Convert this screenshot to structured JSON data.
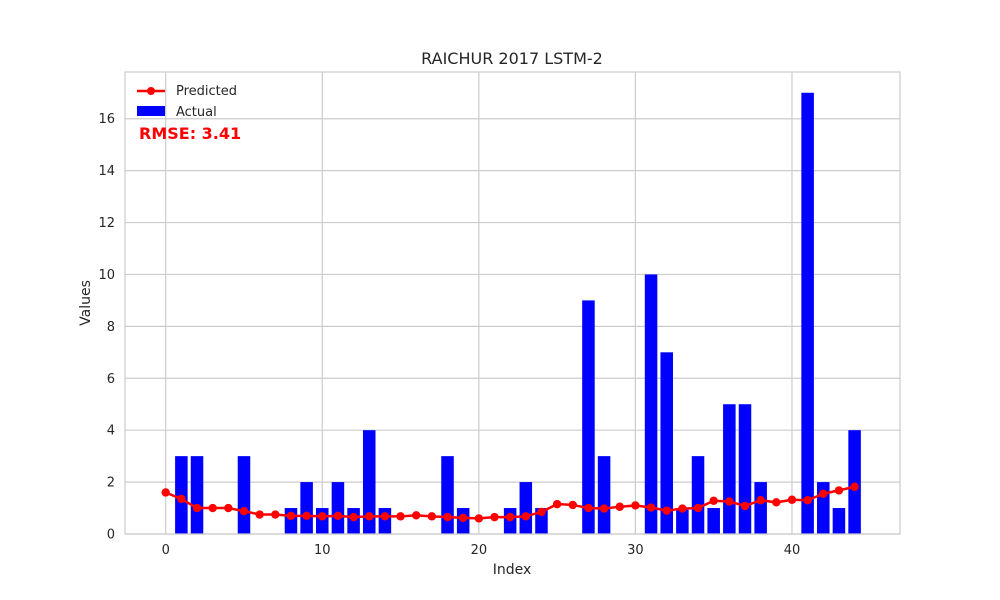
{
  "chart_data": {
    "type": "bar",
    "title": "RAICHUR 2017 LSTM-2",
    "xlabel": "Index",
    "ylabel": "Values",
    "x": [
      0,
      1,
      2,
      3,
      4,
      5,
      6,
      7,
      8,
      9,
      10,
      11,
      12,
      13,
      14,
      15,
      16,
      17,
      18,
      19,
      20,
      21,
      22,
      23,
      24,
      25,
      26,
      27,
      28,
      29,
      30,
      31,
      32,
      33,
      34,
      35,
      36,
      37,
      38,
      39,
      40,
      41,
      42,
      43,
      44
    ],
    "xlim": [
      -2.6,
      46.9
    ],
    "ylim": [
      0,
      17.8
    ],
    "xticks": [
      0,
      10,
      20,
      30,
      40
    ],
    "xtick_labels": [
      "0",
      "10",
      "20",
      "30",
      "40"
    ],
    "yticks": [
      0,
      2,
      4,
      6,
      8,
      10,
      12,
      14,
      16
    ],
    "ytick_labels": [
      "0",
      "2",
      "4",
      "6",
      "8",
      "10",
      "12",
      "14",
      "16"
    ],
    "grid": true,
    "legend_position": "top-left",
    "series": [
      {
        "name": "Actual",
        "type": "bar",
        "color": "#0000ff",
        "values": [
          0,
          3,
          3,
          0,
          0,
          3,
          0,
          0,
          1,
          2,
          1,
          2,
          1,
          4,
          1,
          0,
          0,
          0,
          3,
          1,
          0,
          0,
          1,
          2,
          1,
          0,
          0,
          9,
          3,
          0,
          0,
          10,
          7,
          1,
          3,
          1,
          5,
          5,
          2,
          0,
          0,
          17,
          2,
          1,
          4
        ]
      },
      {
        "name": "Predicted",
        "type": "line",
        "color": "#ff0000",
        "values": [
          1.6,
          1.35,
          1.0,
          1.0,
          1.0,
          0.88,
          0.75,
          0.75,
          0.7,
          0.7,
          0.68,
          0.7,
          0.65,
          0.68,
          0.68,
          0.68,
          0.72,
          0.68,
          0.65,
          0.62,
          0.6,
          0.65,
          0.65,
          0.68,
          0.85,
          1.15,
          1.12,
          1.0,
          0.98,
          1.05,
          1.1,
          1.02,
          0.9,
          0.98,
          1.0,
          1.28,
          1.25,
          1.08,
          1.3,
          1.22,
          1.32,
          1.3,
          1.55,
          1.68,
          1.82
        ]
      }
    ],
    "annotation": {
      "text": "RMSE: 3.41",
      "color": "#ff0000"
    }
  }
}
